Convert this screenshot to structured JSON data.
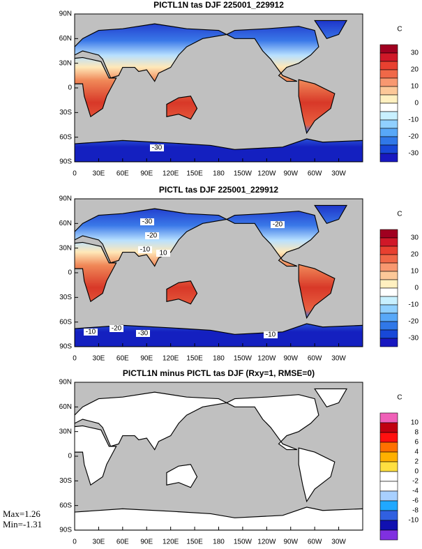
{
  "panels": [
    {
      "title": "PICTL1N tas DJF 225001_229912",
      "style": "field",
      "colorbar": {
        "unit": "C",
        "labels": [
          30,
          20,
          10,
          0,
          -10,
          -20,
          -30
        ],
        "colors": [
          "#a00020",
          "#d01828",
          "#e84030",
          "#f06848",
          "#f89870",
          "#fcc898",
          "#fff0c0",
          "#ffffff",
          "#c8f0ff",
          "#90d0ff",
          "#58a8f8",
          "#3078e8",
          "#1848d8",
          "#1818c0"
        ]
      },
      "contour_labels": [
        "-30"
      ]
    },
    {
      "title": "PICTL tas DJF 225001_229912",
      "style": "field",
      "colorbar": {
        "unit": "C",
        "labels": [
          30,
          20,
          10,
          0,
          -10,
          -20,
          -30
        ],
        "colors": [
          "#a00020",
          "#d01828",
          "#e84030",
          "#f06848",
          "#f89870",
          "#fcc898",
          "#fff0c0",
          "#ffffff",
          "#c8f0ff",
          "#90d0ff",
          "#58a8f8",
          "#3078e8",
          "#1848d8",
          "#1818c0"
        ]
      },
      "contour_labels": [
        "-30",
        "-20",
        "-10",
        "10",
        "-20",
        "-30",
        "-20",
        "-10",
        "-10"
      ]
    },
    {
      "title": "PICTL1N minus PICTL tas DJF (Rxy=1, RMSE=0)",
      "style": "diff",
      "colorbar": {
        "unit": "C",
        "labels": [
          10,
          8,
          6,
          4,
          2,
          0,
          -2,
          -4,
          -6,
          -8,
          -10
        ],
        "colors": [
          "#f060b8",
          "#c00010",
          "#ff1010",
          "#ff7000",
          "#ffb000",
          "#ffe040",
          "#ffffff",
          "#ffffff",
          "#a8d0ff",
          "#20a8ff",
          "#3060e0",
          "#1010b0",
          "#8030e0"
        ]
      },
      "contour_labels": []
    }
  ],
  "lat_labels": [
    "90N",
    "60N",
    "30N",
    "0",
    "30S",
    "60S",
    "90S"
  ],
  "lon_labels": [
    "0",
    "30E",
    "60E",
    "90E",
    "120E",
    "150E",
    "180",
    "150W",
    "120W",
    "90W",
    "60W",
    "30W"
  ],
  "stats": [
    "Max=1.26",
    "Min=-1.31"
  ]
}
